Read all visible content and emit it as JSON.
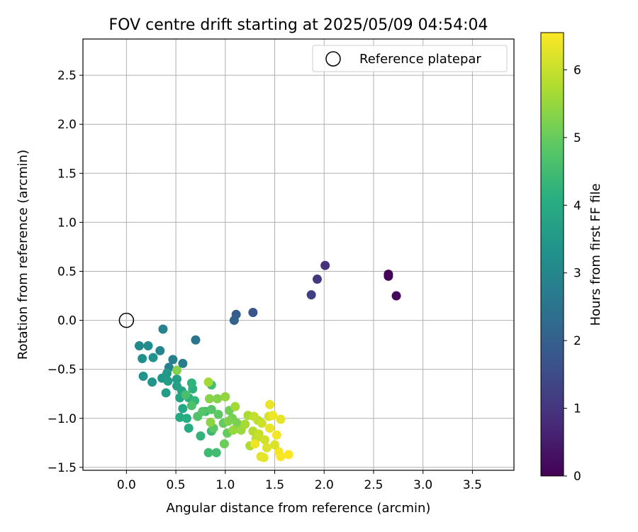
{
  "chart_data": {
    "type": "scatter",
    "title": "FOV centre drift starting at 2025/05/09 04:54:04",
    "xlabel": "Angular distance from reference (arcmin)",
    "ylabel": "Rotation from reference (arcmin)",
    "xlim": [
      -0.44,
      3.92
    ],
    "ylim": [
      -1.53,
      2.87
    ],
    "xticks": [
      0.0,
      0.5,
      1.0,
      1.5,
      2.0,
      2.5,
      3.0,
      3.5
    ],
    "yticks": [
      -1.5,
      -1.0,
      -0.5,
      0.0,
      0.5,
      1.0,
      1.5,
      2.0,
      2.5
    ],
    "xtick_labels": [
      "0.0",
      "0.5",
      "1.0",
      "1.5",
      "2.0",
      "2.5",
      "3.0",
      "3.5"
    ],
    "ytick_labels": [
      "−1.5",
      "−1.0",
      "−0.5",
      "0.0",
      "0.5",
      "1.0",
      "1.5",
      "2.0",
      "2.5"
    ],
    "grid": true,
    "legend": {
      "position": "top-right",
      "entries": [
        "Reference platepar"
      ]
    },
    "reference_point": {
      "x": 0.0,
      "y": 0.0,
      "label": "Reference platepar"
    },
    "colorbar": {
      "label": "Hours from first FF file",
      "colormap": "viridis",
      "range": [
        0,
        6.55
      ],
      "ticks": [
        0,
        1,
        2,
        3,
        4,
        5,
        6
      ],
      "tick_labels": [
        "0",
        "1",
        "2",
        "3",
        "4",
        "5",
        "6"
      ]
    },
    "columns": [
      "x",
      "y",
      "hours"
    ],
    "points": [
      [
        2.65,
        0.47,
        0.0
      ],
      [
        2.65,
        0.45,
        0.05
      ],
      [
        2.73,
        0.25,
        0.15
      ],
      [
        2.01,
        0.56,
        0.9
      ],
      [
        1.93,
        0.42,
        1.05
      ],
      [
        1.87,
        0.26,
        1.2
      ],
      [
        1.28,
        0.08,
        1.75
      ],
      [
        1.11,
        0.06,
        1.95
      ],
      [
        1.09,
        0.0,
        2.05
      ],
      [
        0.7,
        -0.2,
        2.55
      ],
      [
        0.37,
        -0.09,
        2.9
      ],
      [
        0.57,
        -0.44,
        2.75
      ],
      [
        0.47,
        -0.4,
        2.8
      ],
      [
        0.43,
        -0.48,
        2.85
      ],
      [
        0.34,
        -0.31,
        2.95
      ],
      [
        0.13,
        -0.26,
        3.1
      ],
      [
        0.22,
        -0.26,
        3.15
      ],
      [
        0.16,
        -0.39,
        3.25
      ],
      [
        0.27,
        -0.38,
        3.3
      ],
      [
        0.17,
        -0.57,
        3.35
      ],
      [
        0.26,
        -0.63,
        3.4
      ],
      [
        0.36,
        -0.59,
        3.45
      ],
      [
        0.41,
        -0.54,
        3.5
      ],
      [
        0.42,
        -0.62,
        3.55
      ],
      [
        0.4,
        -0.74,
        3.6
      ],
      [
        0.51,
        -0.6,
        3.65
      ],
      [
        0.51,
        -0.67,
        3.7
      ],
      [
        0.56,
        -0.72,
        3.8
      ],
      [
        0.54,
        -0.79,
        3.85
      ],
      [
        0.57,
        -0.9,
        3.9
      ],
      [
        0.54,
        -0.99,
        3.95
      ],
      [
        0.63,
        -1.1,
        4.0
      ],
      [
        0.61,
        -1.0,
        4.05
      ],
      [
        0.63,
        -0.79,
        4.1
      ],
      [
        0.67,
        -0.7,
        4.15
      ],
      [
        0.66,
        -0.64,
        4.2
      ],
      [
        0.75,
        -1.18,
        4.25
      ],
      [
        0.69,
        -0.82,
        4.3
      ],
      [
        0.8,
        -0.93,
        4.35
      ],
      [
        0.86,
        -1.13,
        4.4
      ],
      [
        0.83,
        -1.35,
        4.45
      ],
      [
        0.91,
        -1.35,
        4.5
      ],
      [
        0.86,
        -0.66,
        4.55
      ],
      [
        0.6,
        -0.76,
        4.6
      ],
      [
        0.66,
        -0.87,
        4.65
      ],
      [
        0.72,
        -0.98,
        4.7
      ],
      [
        0.77,
        -0.93,
        4.75
      ],
      [
        0.86,
        -0.91,
        4.8
      ],
      [
        0.88,
        -1.1,
        4.85
      ],
      [
        0.93,
        -0.96,
        4.9
      ],
      [
        0.98,
        -1.05,
        4.95
      ],
      [
        1.02,
        -1.15,
        5.0
      ],
      [
        0.99,
        -1.26,
        5.05
      ],
      [
        1.04,
        -0.92,
        5.1
      ],
      [
        1.07,
        -1.0,
        5.15
      ],
      [
        1.12,
        -1.05,
        5.2
      ],
      [
        1.03,
        -1.03,
        5.25
      ],
      [
        0.92,
        -0.8,
        5.3
      ],
      [
        0.84,
        -0.8,
        5.35
      ],
      [
        0.85,
        -1.04,
        5.4
      ],
      [
        1.0,
        -0.78,
        5.45
      ],
      [
        1.08,
        -1.12,
        5.5
      ],
      [
        1.16,
        -1.12,
        5.55
      ],
      [
        1.1,
        -0.88,
        5.6
      ],
      [
        0.51,
        -0.51,
        5.3
      ],
      [
        0.83,
        -0.63,
        5.6
      ],
      [
        1.2,
        -1.06,
        5.65
      ],
      [
        1.23,
        -0.97,
        5.7
      ],
      [
        1.25,
        -1.28,
        5.75
      ],
      [
        1.28,
        -1.13,
        5.8
      ],
      [
        1.33,
        -1.02,
        5.85
      ],
      [
        1.31,
        -1.21,
        5.9
      ],
      [
        1.29,
        -0.98,
        5.95
      ],
      [
        1.34,
        -1.16,
        6.0
      ],
      [
        1.37,
        -1.05,
        6.05
      ],
      [
        1.4,
        -1.22,
        6.1
      ],
      [
        1.44,
        -0.98,
        6.15
      ],
      [
        1.42,
        -1.3,
        6.2
      ],
      [
        1.36,
        -1.39,
        6.25
      ],
      [
        1.39,
        -1.4,
        6.3
      ],
      [
        1.45,
        -0.86,
        6.35
      ],
      [
        1.48,
        -0.97,
        6.4
      ],
      [
        1.52,
        -1.17,
        6.45
      ],
      [
        1.56,
        -1.39,
        6.5
      ],
      [
        1.64,
        -1.37,
        6.55
      ],
      [
        1.56,
        -1.01,
        6.3
      ],
      [
        1.54,
        -1.34,
        6.5
      ],
      [
        1.5,
        -1.27,
        6.2
      ],
      [
        1.45,
        -1.1,
        6.35
      ],
      [
        1.3,
        -1.26,
        6.4
      ]
    ]
  }
}
